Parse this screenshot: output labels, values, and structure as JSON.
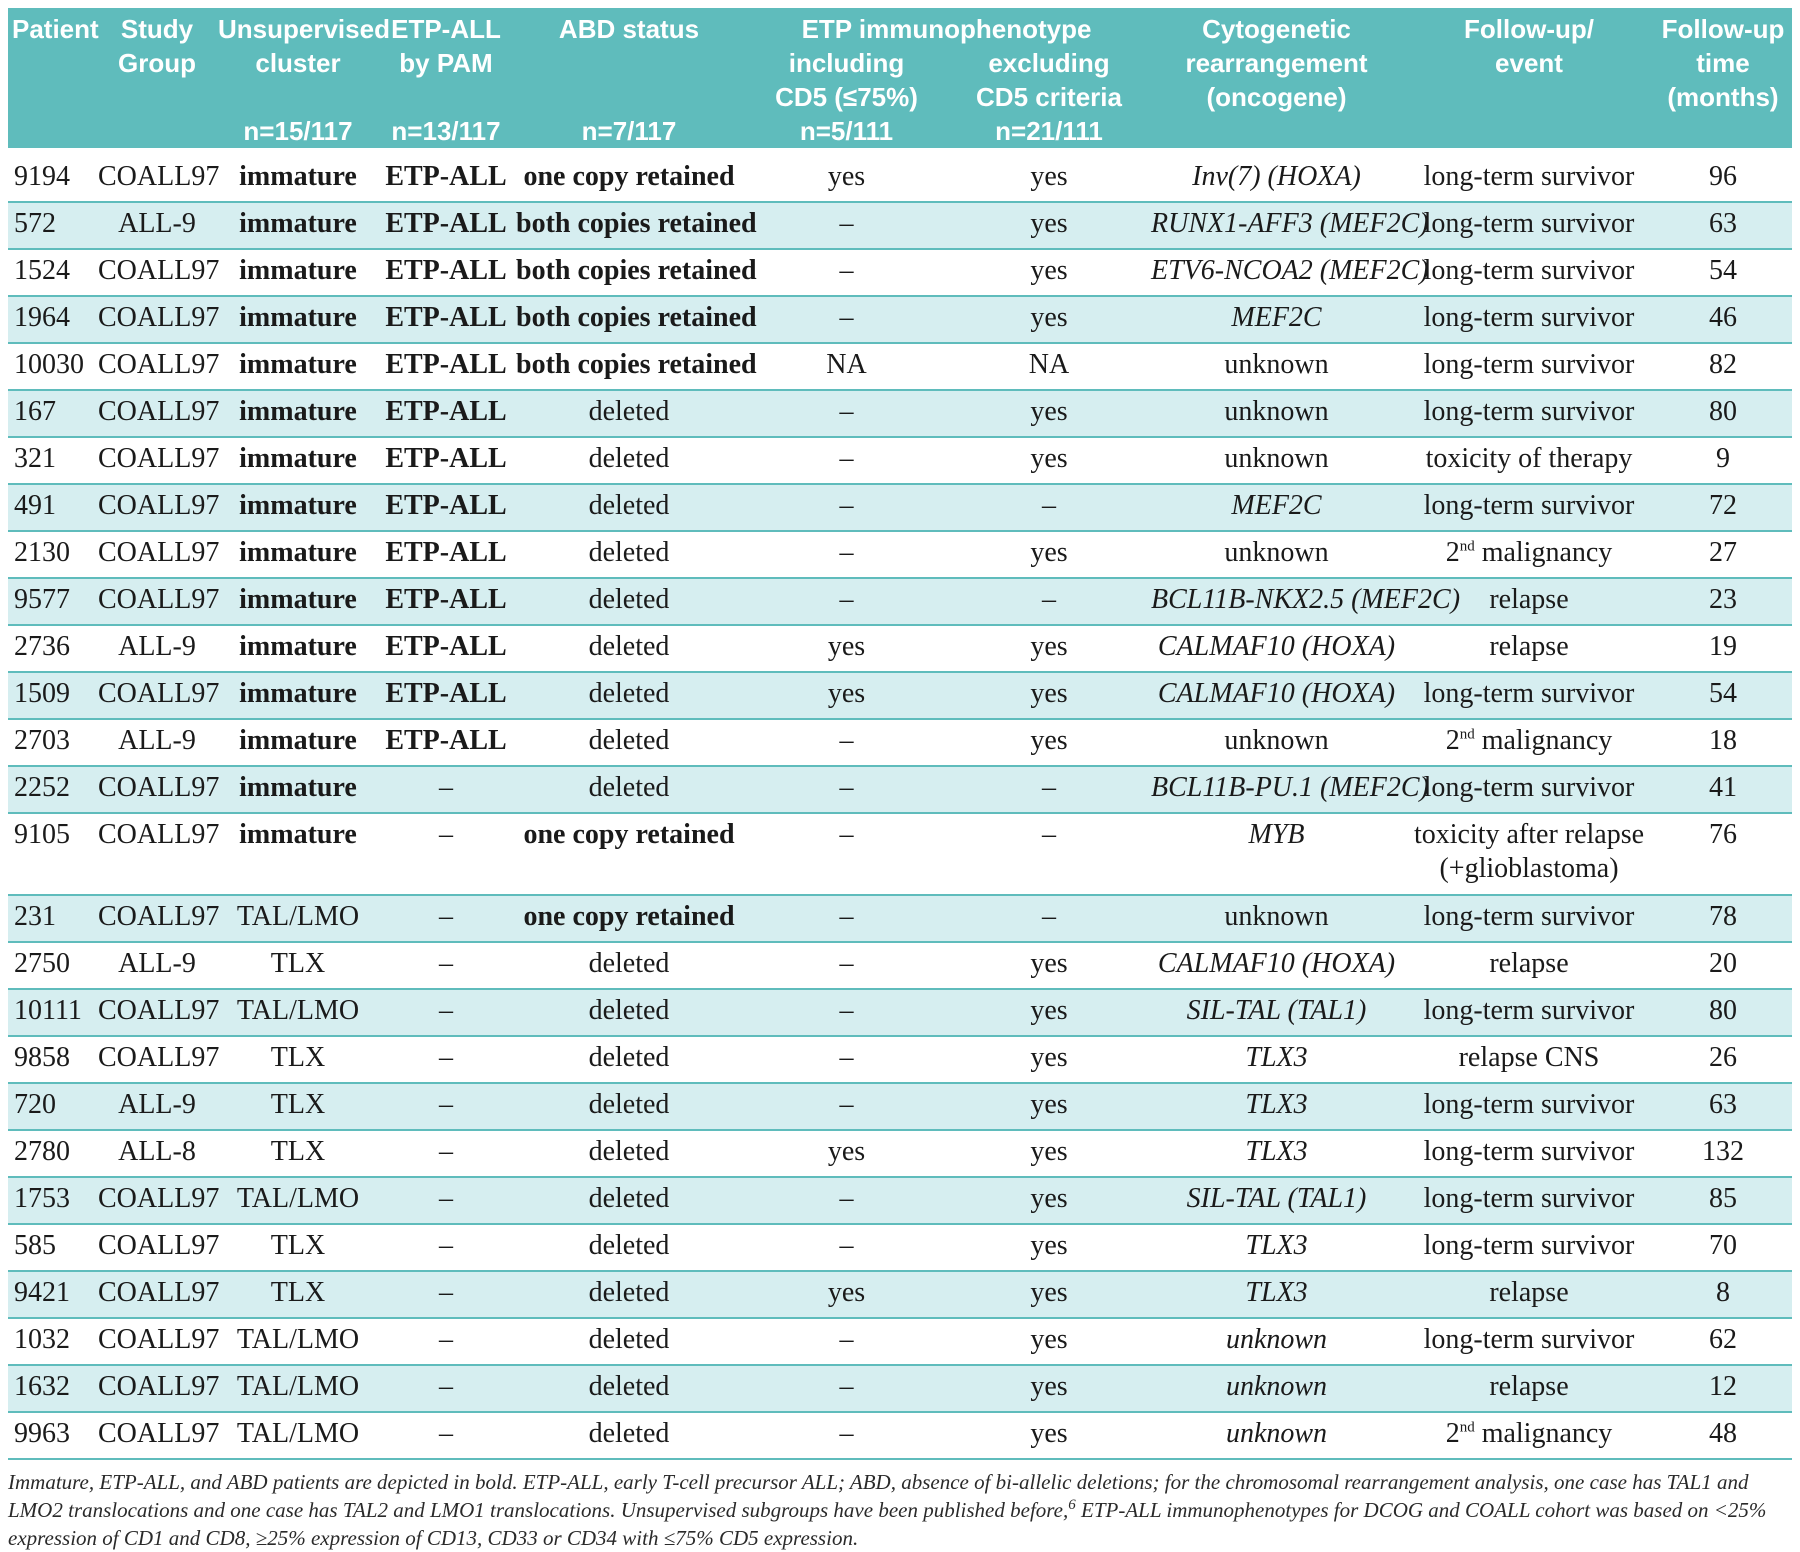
{
  "headers": {
    "patient": [
      "Patient"
    ],
    "study": [
      "Study",
      "Group"
    ],
    "cluster": [
      "Unsupervised",
      "cluster"
    ],
    "etp_pam": [
      "ETP-ALL",
      "by PAM"
    ],
    "abd": [
      "ABD status"
    ],
    "etp_immuno_title": "ETP immunophenotype",
    "incl": [
      "including",
      "CD5 (≤75%)"
    ],
    "excl": [
      "excluding",
      "CD5 criteria"
    ],
    "cyto": [
      "Cytogenetic",
      "rearrangement",
      "(oncogene)"
    ],
    "followup": [
      "Follow-up/",
      "event"
    ],
    "time": [
      "Follow-up",
      "time",
      "(months)"
    ],
    "n_cluster": "n=15/117",
    "n_pam": "n=13/117",
    "n_abd": "n=7/117",
    "n_incl": "n=5/111",
    "n_excl": "n=21/111"
  },
  "rows": [
    {
      "patient": "9194",
      "study": "COALL97",
      "cluster": "immature",
      "pam": "ETP-ALL",
      "abd": "one copy retained",
      "incl": "yes",
      "excl": "yes",
      "cyto": "Inv(7) (HOXA)",
      "event": "long-term survivor",
      "time": "96",
      "cb": true,
      "pb": true,
      "ab": true,
      "ci": true
    },
    {
      "patient": "572",
      "study": "ALL-9",
      "cluster": "immature",
      "pam": "ETP-ALL",
      "abd": "both copies retained",
      "incl": "–",
      "excl": "yes",
      "cyto": "RUNX1-AFF3 (MEF2C)",
      "event": "long-term survivor",
      "time": "63",
      "cb": true,
      "pb": true,
      "ab": true,
      "ci": true
    },
    {
      "patient": "1524",
      "study": "COALL97",
      "cluster": "immature",
      "pam": "ETP-ALL",
      "abd": "both copies retained",
      "incl": "–",
      "excl": "yes",
      "cyto": "ETV6-NCOA2 (MEF2C)",
      "event": "long-term survivor",
      "time": "54",
      "cb": true,
      "pb": true,
      "ab": true,
      "ci": true
    },
    {
      "patient": "1964",
      "study": "COALL97",
      "cluster": "immature",
      "pam": "ETP-ALL",
      "abd": "both copies retained",
      "incl": "–",
      "excl": "yes",
      "cyto": "MEF2C",
      "event": "long-term survivor",
      "time": "46",
      "cb": true,
      "pb": true,
      "ab": true,
      "ci": true
    },
    {
      "patient": "10030",
      "study": "COALL97",
      "cluster": "immature",
      "pam": "ETP-ALL",
      "abd": "both copies retained",
      "incl": "NA",
      "excl": "NA",
      "cyto": "unknown",
      "event": "long-term survivor",
      "time": "82",
      "cb": true,
      "pb": true,
      "ab": true,
      "ci": false
    },
    {
      "patient": "167",
      "study": "COALL97",
      "cluster": "immature",
      "pam": "ETP-ALL",
      "abd": "deleted",
      "incl": "–",
      "excl": "yes",
      "cyto": "unknown",
      "event": "long-term survivor",
      "time": "80",
      "cb": true,
      "pb": true,
      "ab": false,
      "ci": false
    },
    {
      "patient": "321",
      "study": "COALL97",
      "cluster": "immature",
      "pam": "ETP-ALL",
      "abd": "deleted",
      "incl": "–",
      "excl": "yes",
      "cyto": "unknown",
      "event": "toxicity of therapy",
      "time": "9",
      "cb": true,
      "pb": true,
      "ab": false,
      "ci": false
    },
    {
      "patient": "491",
      "study": "COALL97",
      "cluster": "immature",
      "pam": "ETP-ALL",
      "abd": "deleted",
      "incl": "–",
      "excl": "–",
      "cyto": "MEF2C",
      "event": "long-term survivor",
      "time": "72",
      "cb": true,
      "pb": true,
      "ab": false,
      "ci": true
    },
    {
      "patient": "2130",
      "study": "COALL97",
      "cluster": "immature",
      "pam": "ETP-ALL",
      "abd": "deleted",
      "incl": "–",
      "excl": "yes",
      "cyto": "unknown",
      "event_pre": "2",
      "event_sup": "nd",
      "event_post": " malignancy",
      "time": "27",
      "cb": true,
      "pb": true,
      "ab": false,
      "ci": false
    },
    {
      "patient": "9577",
      "study": "COALL97",
      "cluster": "immature",
      "pam": "ETP-ALL",
      "abd": "deleted",
      "incl": "–",
      "excl": "–",
      "cyto": "BCL11B-NKX2.5 (MEF2C)",
      "event": "relapse",
      "time": "23",
      "cb": true,
      "pb": true,
      "ab": false,
      "ci": true
    },
    {
      "patient": "2736",
      "study": "ALL-9",
      "cluster": "immature",
      "pam": "ETP-ALL",
      "abd": "deleted",
      "incl": "yes",
      "excl": "yes",
      "cyto": "CALMAF10 (HOXA)",
      "event": "relapse",
      "time": "19",
      "cb": true,
      "pb": true,
      "ab": false,
      "ci": true
    },
    {
      "patient": "1509",
      "study": "COALL97",
      "cluster": "immature",
      "pam": "ETP-ALL",
      "abd": "deleted",
      "incl": "yes",
      "excl": "yes",
      "cyto": "CALMAF10 (HOXA)",
      "event": "long-term survivor",
      "time": "54",
      "cb": true,
      "pb": true,
      "ab": false,
      "ci": true
    },
    {
      "patient": "2703",
      "study": "ALL-9",
      "cluster": "immature",
      "pam": "ETP-ALL",
      "abd": "deleted",
      "incl": "–",
      "excl": "yes",
      "cyto": "unknown",
      "event_pre": "2",
      "event_sup": "nd",
      "event_post": " malignancy",
      "time": "18",
      "cb": true,
      "pb": true,
      "ab": false,
      "ci": false
    },
    {
      "patient": "2252",
      "study": "COALL97",
      "cluster": "immature",
      "pam": "–",
      "abd": "deleted",
      "incl": "–",
      "excl": "–",
      "cyto": "BCL11B-PU.1 (MEF2C)",
      "event": "long-term survivor",
      "time": "41",
      "cb": true,
      "pb": false,
      "ab": false,
      "ci": true
    },
    {
      "patient": "9105",
      "study": "COALL97",
      "cluster": "immature",
      "pam": "–",
      "abd": "one copy retained",
      "incl": "–",
      "excl": "–",
      "cyto": "MYB",
      "event": "toxicity after relapse",
      "event2": "(+glioblastoma)",
      "time": "76",
      "cb": true,
      "pb": false,
      "ab": true,
      "ci": true
    },
    {
      "patient": "231",
      "study": "COALL97",
      "cluster": "TAL/LMO",
      "pam": "–",
      "abd": "one copy retained",
      "incl": "–",
      "excl": "–",
      "cyto": "unknown",
      "event": "long-term survivor",
      "time": "78",
      "cb": false,
      "pb": false,
      "ab": true,
      "ci": false
    },
    {
      "patient": "2750",
      "study": "ALL-9",
      "cluster": "TLX",
      "pam": "–",
      "abd": "deleted",
      "incl": "–",
      "excl": "yes",
      "cyto": "CALMAF10 (HOXA)",
      "event": "relapse",
      "time": "20",
      "cb": false,
      "pb": false,
      "ab": false,
      "ci": true
    },
    {
      "patient": "10111",
      "study": "COALL97",
      "cluster": "TAL/LMO",
      "pam": "–",
      "abd": "deleted",
      "incl": "–",
      "excl": "yes",
      "cyto": "SIL-TAL (TAL1)",
      "event": "long-term survivor",
      "time": "80",
      "cb": false,
      "pb": false,
      "ab": false,
      "ci": true
    },
    {
      "patient": "9858",
      "study": "COALL97",
      "cluster": "TLX",
      "pam": "–",
      "abd": "deleted",
      "incl": "–",
      "excl": "yes",
      "cyto": "TLX3",
      "event": "relapse CNS",
      "time": "26",
      "cb": false,
      "pb": false,
      "ab": false,
      "ci": true
    },
    {
      "patient": "720",
      "study": "ALL-9",
      "cluster": "TLX",
      "pam": "–",
      "abd": "deleted",
      "incl": "–",
      "excl": "yes",
      "cyto": "TLX3",
      "event": "long-term survivor",
      "time": "63",
      "cb": false,
      "pb": false,
      "ab": false,
      "ci": true
    },
    {
      "patient": "2780",
      "study": "ALL-8",
      "cluster": "TLX",
      "pam": "–",
      "abd": "deleted",
      "incl": "yes",
      "excl": "yes",
      "cyto": "TLX3",
      "event": "long-term survivor",
      "time": "132",
      "cb": false,
      "pb": false,
      "ab": false,
      "ci": true
    },
    {
      "patient": "1753",
      "study": "COALL97",
      "cluster": "TAL/LMO",
      "pam": "–",
      "abd": "deleted",
      "incl": "–",
      "excl": "yes",
      "cyto": "SIL-TAL (TAL1)",
      "event": "long-term survivor",
      "time": "85",
      "cb": false,
      "pb": false,
      "ab": false,
      "ci": true
    },
    {
      "patient": "585",
      "study": "COALL97",
      "cluster": "TLX",
      "pam": "–",
      "abd": "deleted",
      "incl": "–",
      "excl": "yes",
      "cyto": "TLX3",
      "event": "long-term survivor",
      "time": "70",
      "cb": false,
      "pb": false,
      "ab": false,
      "ci": true
    },
    {
      "patient": "9421",
      "study": "COALL97",
      "cluster": "TLX",
      "pam": "–",
      "abd": "deleted",
      "incl": "yes",
      "excl": "yes",
      "cyto": "TLX3",
      "event": "relapse",
      "time": "8",
      "cb": false,
      "pb": false,
      "ab": false,
      "ci": true
    },
    {
      "patient": "1032",
      "study": "COALL97",
      "cluster": "TAL/LMO",
      "pam": "–",
      "abd": "deleted",
      "incl": "–",
      "excl": "yes",
      "cyto": "unknown",
      "event": "long-term survivor",
      "time": "62",
      "cb": false,
      "pb": false,
      "ab": false,
      "ci": true
    },
    {
      "patient": "1632",
      "study": "COALL97",
      "cluster": "TAL/LMO",
      "pam": "–",
      "abd": "deleted",
      "incl": "–",
      "excl": "yes",
      "cyto": "unknown",
      "event": "relapse",
      "time": "12",
      "cb": false,
      "pb": false,
      "ab": false,
      "ci": true
    },
    {
      "patient": "9963",
      "study": "COALL97",
      "cluster": "TAL/LMO",
      "pam": "–",
      "abd": "deleted",
      "incl": "–",
      "excl": "yes",
      "cyto": "unknown",
      "event_pre": "2",
      "event_sup": "nd",
      "event_post": " malignancy",
      "time": "48",
      "cb": false,
      "pb": false,
      "ab": false,
      "ci": true
    }
  ],
  "footnote": {
    "part1": "Immature, ETP-ALL, and ABD patients are depicted in bold. ETP-ALL, early T-cell precursor ALL; ABD, absence of bi-allelic deletions; for the chromosomal rearrangement analysis, one case has TAL1 and LMO2 translocations and one case has TAL2 and LMO1 translocations. Unsupervised subgroups have been published before,",
    "ref": "6",
    "part2": " ETP-ALL immunophenotypes for DCOG and COALL cohort was based on <25% expression of CD1 and CD8, ≥25% expression of CD13, CD33 or CD34 with ≤75% CD5 expression."
  },
  "colors": {
    "header": "#5fbcbc",
    "stripe": "#d6eef0"
  }
}
